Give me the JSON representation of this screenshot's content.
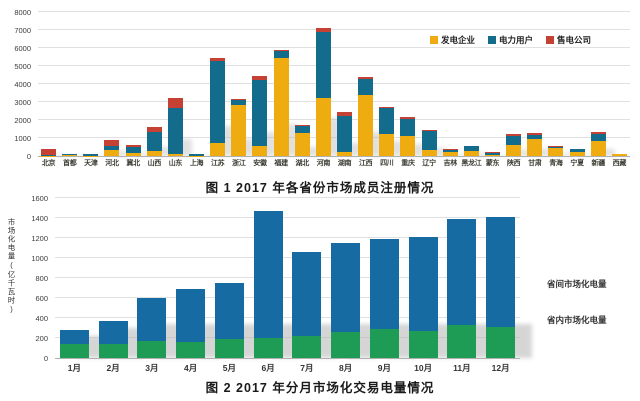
{
  "chart_data": [
    {
      "type": "bar",
      "stacked": true,
      "title": "图 1  2017 年各省份市场成员注册情况",
      "categories": [
        "北京",
        "首都",
        "天津",
        "河北",
        "冀北",
        "山西",
        "山东",
        "上海",
        "江苏",
        "浙江",
        "安徽",
        "福建",
        "湖北",
        "河南",
        "湖南",
        "江西",
        "四川",
        "重庆",
        "辽宁",
        "吉林",
        "黑龙江",
        "蒙东",
        "陕西",
        "甘肃",
        "青海",
        "宁夏",
        "新疆",
        "西藏"
      ],
      "series": [
        {
          "name": "发电企业",
          "color": "#EFAC10",
          "values": [
            20,
            30,
            20,
            350,
            190,
            300,
            100,
            20,
            720,
            2850,
            550,
            5450,
            1300,
            3200,
            250,
            3400,
            1250,
            1100,
            320,
            200,
            300,
            80,
            590,
            930,
            450,
            200,
            850,
            90
          ]
        },
        {
          "name": "电力用户",
          "color": "#136C8C",
          "values": [
            10,
            70,
            100,
            220,
            330,
            1050,
            2550,
            90,
            4560,
            250,
            3700,
            400,
            350,
            3700,
            2000,
            900,
            1400,
            950,
            1080,
            150,
            230,
            60,
            500,
            220,
            50,
            180,
            370,
            0
          ]
        },
        {
          "name": "售电公司",
          "color": "#C44133",
          "values": [
            340,
            10,
            10,
            340,
            110,
            250,
            550,
            20,
            190,
            50,
            200,
            50,
            50,
            200,
            200,
            100,
            100,
            100,
            30,
            20,
            30,
            80,
            110,
            150,
            40,
            30,
            130,
            0
          ]
        }
      ],
      "ylim": [
        0,
        8000
      ],
      "ytick_step": 1000,
      "legend_position": "top-right-inside",
      "grid": true
    },
    {
      "type": "bar",
      "stacked": true,
      "title": "图 2  2017 年分月市场化交易电量情况",
      "ylabel": "市场化电量(亿千瓦时)",
      "categories": [
        "1月",
        "2月",
        "3月",
        "4月",
        "5月",
        "6月",
        "7月",
        "8月",
        "9月",
        "10月",
        "11月",
        "12月"
      ],
      "series": [
        {
          "name": "省间市场化电量",
          "color": "#1E9B55",
          "values": [
            140,
            140,
            170,
            165,
            190,
            200,
            225,
            265,
            290,
            275,
            330,
            310
          ]
        },
        {
          "name": "省内市场化电量",
          "color": "#176BA3",
          "values": [
            140,
            230,
            430,
            525,
            560,
            1270,
            835,
            885,
            900,
            935,
            1060,
            1100
          ]
        }
      ],
      "ylim": [
        0,
        1600
      ],
      "ytick_step": 200,
      "legend_position": "right-text",
      "grid": true
    }
  ]
}
